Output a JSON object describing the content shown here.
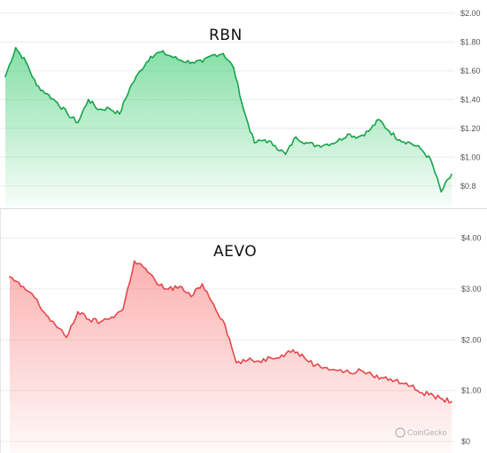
{
  "chart_data": [
    {
      "type": "area",
      "title": "RBN",
      "color": "#16a34a",
      "fill_color": "#22c55e",
      "yticks": [
        "$2.00",
        "$1.80",
        "$1.60",
        "$1.40",
        "$1.20",
        "$1.00",
        "$0.8"
      ],
      "ytick_values": [
        2.0,
        1.8,
        1.6,
        1.4,
        1.2,
        1.0,
        0.8
      ],
      "ylim": [
        0.7,
        2.03
      ],
      "grid": true,
      "values": [
        1.56,
        1.76,
        1.66,
        1.5,
        1.44,
        1.38,
        1.3,
        1.24,
        1.4,
        1.33,
        1.34,
        1.3,
        1.48,
        1.6,
        1.7,
        1.73,
        1.7,
        1.67,
        1.66,
        1.66,
        1.71,
        1.72,
        1.62,
        1.32,
        1.1,
        1.12,
        1.08,
        1.02,
        1.14,
        1.1,
        1.08,
        1.09,
        1.11,
        1.16,
        1.14,
        1.18,
        1.26,
        1.18,
        1.12,
        1.1,
        1.06,
        0.98,
        0.76,
        0.88
      ]
    },
    {
      "type": "area",
      "title": "AEVO",
      "color": "#e5484d",
      "fill_color": "#f87171",
      "yticks": [
        "$4.00",
        "$3.00",
        "$2.00",
        "$1.00",
        "$0"
      ],
      "ytick_values": [
        4.0,
        3.0,
        2.0,
        1.0,
        0.0
      ],
      "ylim": [
        0,
        4.1
      ],
      "grid": true,
      "values": [
        3.24,
        3.05,
        2.9,
        2.55,
        2.3,
        2.05,
        2.55,
        2.4,
        2.35,
        2.45,
        2.6,
        3.55,
        3.4,
        3.1,
        3.0,
        3.05,
        2.85,
        3.1,
        2.7,
        2.3,
        1.55,
        1.6,
        1.58,
        1.65,
        1.7,
        1.8,
        1.65,
        1.5,
        1.45,
        1.4,
        1.35,
        1.4,
        1.3,
        1.25,
        1.2,
        1.15,
        1.0,
        0.92,
        0.85,
        0.78
      ]
    }
  ],
  "watermark": "CoinGecko"
}
